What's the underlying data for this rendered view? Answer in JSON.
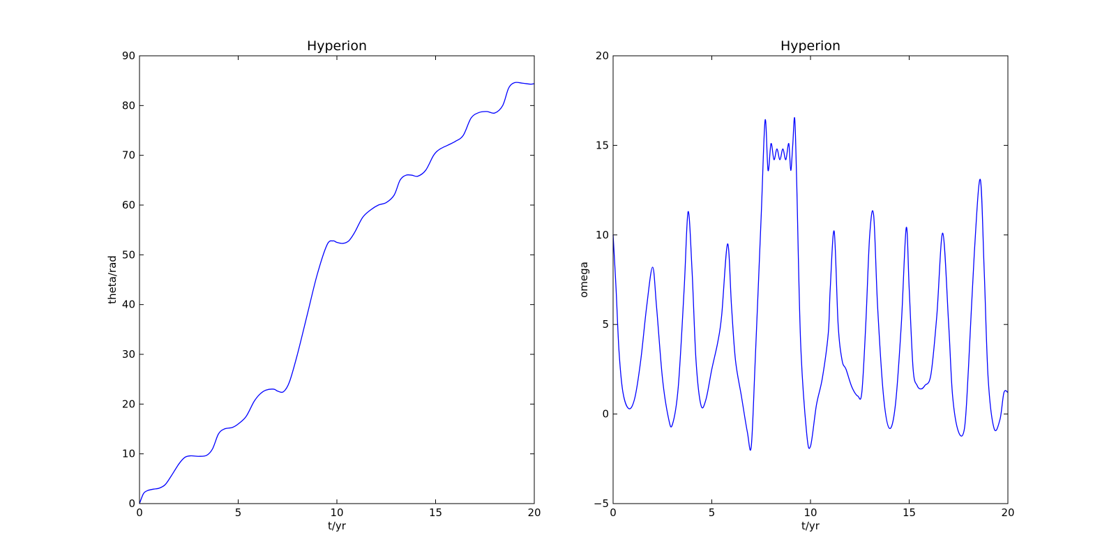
{
  "chart_data": [
    {
      "type": "line",
      "title": "Hyperion",
      "xlabel": "t/yr",
      "ylabel": "theta/rad",
      "xlim": [
        0,
        20
      ],
      "ylim": [
        0,
        90
      ],
      "xticks": [
        "0",
        "5",
        "10",
        "15",
        "20"
      ],
      "yticks": [
        "0",
        "10",
        "20",
        "30",
        "40",
        "50",
        "60",
        "70",
        "80",
        "90"
      ],
      "grid": false,
      "series": [
        {
          "color": "#0000ff",
          "x": [
            0,
            0.2,
            0.4,
            0.7,
            1.0,
            1.3,
            1.6,
            2.0,
            2.3,
            2.6,
            3.0,
            3.4,
            3.7,
            4.0,
            4.3,
            4.7,
            5.0,
            5.4,
            5.8,
            6.1,
            6.4,
            6.8,
            7.0,
            7.3,
            7.6,
            8.0,
            8.5,
            9.0,
            9.5,
            9.8,
            10.0,
            10.3,
            10.6,
            10.9,
            11.3,
            11.7,
            12.1,
            12.5,
            12.9,
            13.2,
            13.5,
            13.8,
            14.1,
            14.5,
            14.9,
            15.2,
            15.6,
            16.0,
            16.4,
            16.8,
            17.2,
            17.6,
            18.0,
            18.4,
            18.7,
            19.0,
            19.4,
            19.8,
            20.0
          ],
          "y": [
            0,
            2.0,
            2.6,
            2.9,
            3.1,
            3.8,
            5.5,
            8.0,
            9.3,
            9.6,
            9.5,
            9.7,
            11.0,
            14.0,
            15.0,
            15.3,
            16.0,
            17.5,
            20.5,
            22.0,
            22.8,
            23.0,
            22.6,
            22.5,
            24.5,
            30.0,
            38.0,
            46.0,
            52.0,
            52.8,
            52.5,
            52.3,
            52.8,
            54.5,
            57.5,
            59.0,
            60.0,
            60.5,
            62.0,
            65.0,
            66.0,
            66.0,
            65.8,
            67.0,
            70.0,
            71.2,
            72.0,
            72.8,
            74.0,
            77.5,
            78.6,
            78.8,
            78.5,
            80.0,
            83.5,
            84.6,
            84.5,
            84.3,
            84.4
          ]
        }
      ]
    },
    {
      "type": "line",
      "title": "Hyperion",
      "xlabel": "t/yr",
      "ylabel": "omega",
      "xlim": [
        0,
        20
      ],
      "ylim": [
        -5,
        20
      ],
      "xticks": [
        "0",
        "5",
        "10",
        "15",
        "20"
      ],
      "yticks": [
        "−5",
        "0",
        "5",
        "10",
        "15",
        "20"
      ],
      "grid": false,
      "series": [
        {
          "color": "#0000ff",
          "x": [
            0,
            0.15,
            0.3,
            0.5,
            0.8,
            1.1,
            1.4,
            1.7,
            2.0,
            2.2,
            2.5,
            2.8,
            3.0,
            3.3,
            3.6,
            3.8,
            4.0,
            4.2,
            4.45,
            4.7,
            5.0,
            5.3,
            5.5,
            5.8,
            6.0,
            6.2,
            6.5,
            6.8,
            7.0,
            7.2,
            7.5,
            7.7,
            7.85,
            8.0,
            8.15,
            8.3,
            8.45,
            8.6,
            8.75,
            8.9,
            9.0,
            9.1,
            9.2,
            9.3,
            9.5,
            9.8,
            10.0,
            10.3,
            10.6,
            10.9,
            11.0,
            11.2,
            11.4,
            11.6,
            11.8,
            12.1,
            12.4,
            12.6,
            12.8,
            13.0,
            13.2,
            13.4,
            13.7,
            14.0,
            14.3,
            14.6,
            14.85,
            15.0,
            15.2,
            15.4,
            15.6,
            15.8,
            16.1,
            16.4,
            16.7,
            17.0,
            17.2,
            17.5,
            17.8,
            18.0,
            18.3,
            18.6,
            18.8,
            19.0,
            19.3,
            19.6,
            19.8,
            20.0
          ],
          "y": [
            10.0,
            7.0,
            3.5,
            1.2,
            0.3,
            0.9,
            3.0,
            6.0,
            8.2,
            6.0,
            2.0,
            -0.2,
            -0.6,
            1.5,
            7.0,
            11.3,
            8.0,
            3.0,
            0.5,
            0.8,
            2.5,
            4.0,
            5.5,
            9.5,
            6.0,
            3.0,
            1.0,
            -1.0,
            -1.8,
            3.0,
            11.0,
            16.4,
            13.6,
            15.1,
            14.2,
            14.8,
            14.2,
            14.8,
            14.2,
            15.1,
            13.6,
            15.0,
            16.5,
            13.0,
            4.0,
            -1.0,
            -1.8,
            0.5,
            2.0,
            4.5,
            7.0,
            10.2,
            5.0,
            3.0,
            2.5,
            1.5,
            1.0,
            1.2,
            5.0,
            10.0,
            11.1,
            6.0,
            1.0,
            -0.8,
            0.5,
            5.0,
            10.4,
            7.0,
            2.5,
            1.6,
            1.4,
            1.6,
            2.2,
            5.5,
            10.1,
            5.0,
            1.0,
            -1.0,
            -0.8,
            2.5,
            9.0,
            13.1,
            8.0,
            2.0,
            -0.8,
            -0.3,
            1.2,
            1.2
          ]
        }
      ]
    }
  ]
}
